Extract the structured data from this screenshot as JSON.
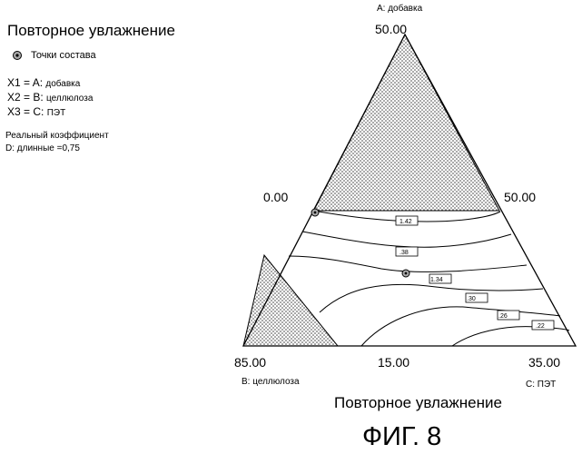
{
  "title": "Повторное увлажнение",
  "legend": {
    "marker_label": "Точки состава"
  },
  "factors": [
    {
      "name": "X1 = A:",
      "value": "добавка"
    },
    {
      "name": "X2 = B:",
      "value": "целлюлоза"
    },
    {
      "name": "X3 = C:",
      "value": "ПЭТ"
    }
  ],
  "coefficient": {
    "line1": "Реальный коэффициент",
    "line2": "D: длинные =0,75"
  },
  "axis_labels": {
    "a": "A: добавка",
    "b": "B: целлюлоза",
    "c": "C: ПЭТ"
  },
  "ticks": {
    "a_top": "50.00",
    "a_left": "0.00",
    "a_right": "50.00",
    "b_corner": "85.00",
    "bottom_mid": "15.00",
    "c_corner": "35.00"
  },
  "bottom_title": "Повторное увлажнение",
  "figure_label": "ФИГ. 8",
  "colors": {
    "line": "#000000",
    "hatch": "#555555",
    "background": "#ffffff"
  },
  "chart_data": {
    "type": "ternary-contour",
    "title": "Повторное увлажнение",
    "components": [
      "A: добавка",
      "B: целлюлоза",
      "C: ПЭТ"
    ],
    "contours": [
      {
        "label": "1.42",
        "value": 1.42
      },
      {
        "label": "1.38",
        "value": 1.38
      },
      {
        "label": "1.34",
        "value": 1.34
      },
      {
        "label": "1.30",
        "value": 1.3
      },
      {
        "label": "1.26",
        "value": 1.26
      },
      {
        "label": "1.22",
        "value": 1.22
      }
    ],
    "contour_text": [
      "1.42",
      ".38",
      "1.34",
      ".30",
      ".26",
      ".22"
    ],
    "design_points": 2
  }
}
